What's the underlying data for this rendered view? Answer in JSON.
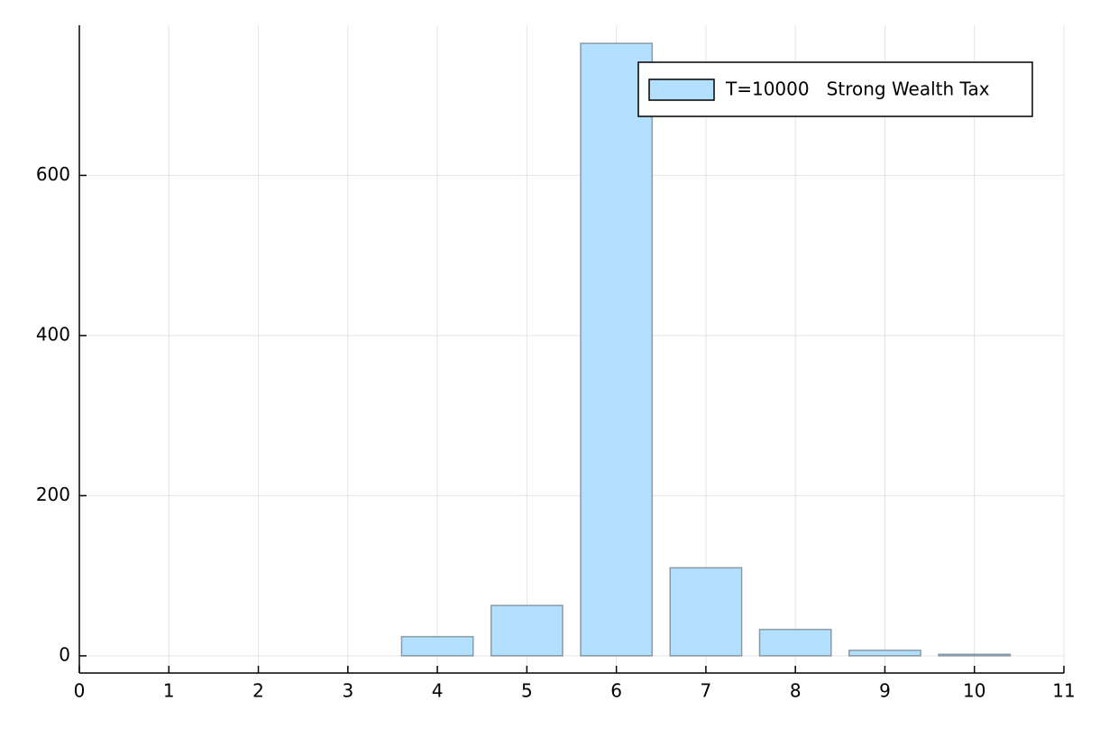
{
  "chart_data": {
    "type": "bar",
    "x": [
      1,
      2,
      3,
      4,
      5,
      6,
      7,
      8,
      9,
      10
    ],
    "series": [
      {
        "name": "T=10000   Strong Wealth Tax",
        "color": "#b3e0ff",
        "values": [
          0,
          0,
          0,
          24,
          63,
          765,
          110,
          33,
          7,
          2
        ]
      }
    ],
    "xlim": [
      0,
      11
    ],
    "xticks": [
      0,
      1,
      2,
      3,
      4,
      5,
      6,
      7,
      8,
      9,
      10,
      11
    ],
    "ylim": [
      -21.5,
      787.5
    ],
    "yticks": [
      0,
      200,
      400,
      600
    ],
    "grid": true,
    "legend": "top-right"
  }
}
